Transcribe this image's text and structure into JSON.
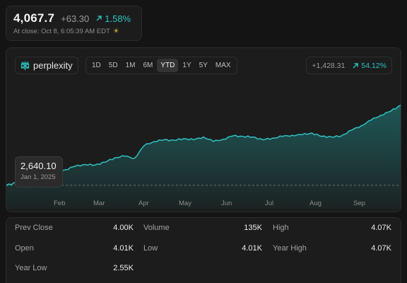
{
  "quote": {
    "price": "4,067.7",
    "change": "+63.30",
    "change_pct": "1.58%",
    "close_label": "At close: Oct 8, 6:05:39 AM EDT",
    "close_icon": "sun-icon"
  },
  "brand": {
    "name": "perplexity",
    "icon": "perplexity-logo-icon"
  },
  "ranges": [
    {
      "label": "1D",
      "active": false
    },
    {
      "label": "5D",
      "active": false
    },
    {
      "label": "1M",
      "active": false
    },
    {
      "label": "6M",
      "active": false
    },
    {
      "label": "YTD",
      "active": true
    },
    {
      "label": "1Y",
      "active": false
    },
    {
      "label": "5Y",
      "active": false
    },
    {
      "label": "MAX",
      "active": false
    }
  ],
  "performance": {
    "change": "+1,428.31",
    "change_pct": "54.12%",
    "icon": "arrow-up-right-icon"
  },
  "tooltip": {
    "value": "2,640.10",
    "date": "Jan 1, 2025"
  },
  "chart_data": {
    "type": "area",
    "x": [
      "Jan 1",
      "Jan 8",
      "Jan 15",
      "Jan 22",
      "Jan 29",
      "Feb 5",
      "Feb 12",
      "Feb 19",
      "Feb 26",
      "Mar 5",
      "Mar 12",
      "Mar 19",
      "Mar 26",
      "Apr 2",
      "Apr 9",
      "Apr 16",
      "Apr 23",
      "Apr 30",
      "May 7",
      "May 14",
      "May 21",
      "May 28",
      "Jun 4",
      "Jun 11",
      "Jun 18",
      "Jun 25",
      "Jul 2",
      "Jul 9",
      "Jul 16",
      "Jul 23",
      "Jul 30",
      "Aug 6",
      "Aug 13",
      "Aug 20",
      "Aug 27",
      "Sep 3",
      "Sep 10",
      "Sep 17",
      "Sep 24",
      "Oct 1",
      "Oct 8"
    ],
    "values": [
      2640,
      2690,
      2750,
      2800,
      2860,
      2890,
      2920,
      2980,
      3010,
      3000,
      3050,
      3130,
      3160,
      3120,
      3350,
      3420,
      3450,
      3440,
      3470,
      3450,
      3500,
      3420,
      3460,
      3520,
      3510,
      3500,
      3450,
      3480,
      3510,
      3530,
      3540,
      3570,
      3510,
      3500,
      3520,
      3620,
      3700,
      3800,
      3890,
      3960,
      4067.7
    ],
    "baseline": 2640.1,
    "ylim": [
      2500,
      4100
    ],
    "months": [
      "Feb",
      "Mar",
      "Apr",
      "May",
      "Jun",
      "Jul",
      "Aug",
      "Sep"
    ],
    "line_color": "#2fc2c2",
    "fill_color": "#1f6b6b"
  },
  "stats": [
    {
      "label": "Prev Close",
      "value": "4.00K"
    },
    {
      "label": "Volume",
      "value": "135K"
    },
    {
      "label": "High",
      "value": "4.07K"
    },
    {
      "label": "Open",
      "value": "4.01K"
    },
    {
      "label": "Low",
      "value": "4.01K"
    },
    {
      "label": "Year High",
      "value": "4.07K"
    },
    {
      "label": "Year Low",
      "value": "2.55K"
    }
  ]
}
